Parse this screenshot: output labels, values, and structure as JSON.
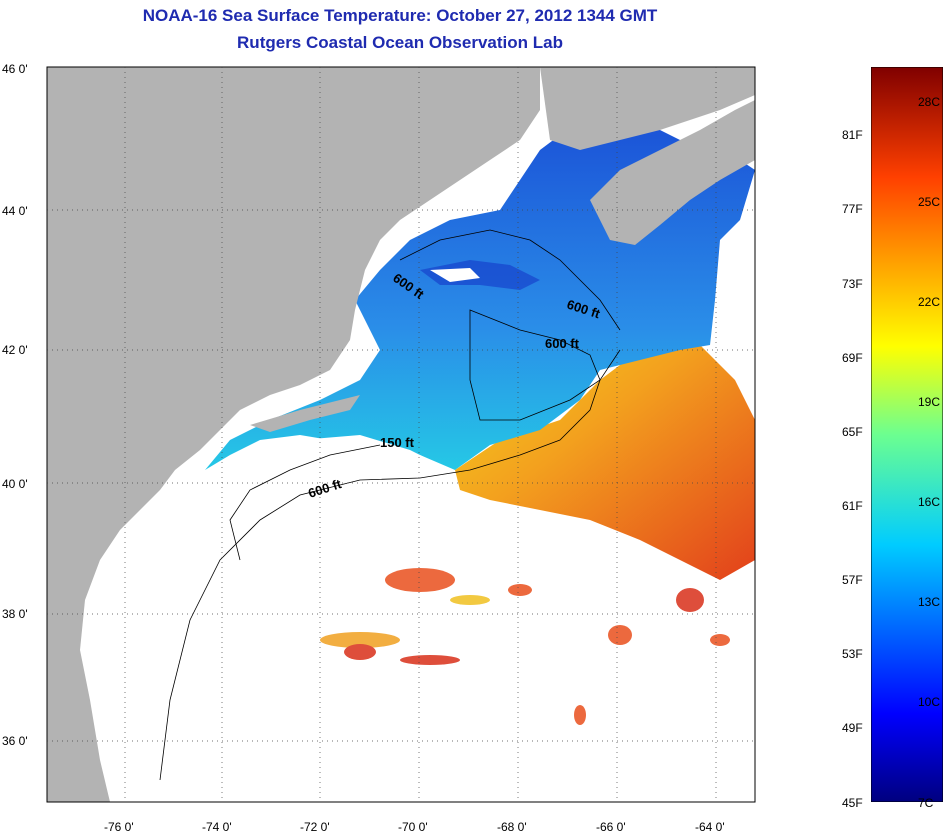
{
  "header": {
    "title": "NOAA-16 Sea Surface Temperature:  October 27, 2012 1344 GMT",
    "subtitle": "Rutgers Coastal Ocean Observation Lab"
  },
  "colors": {
    "title": "#1f2bb0",
    "land": "#b3b3b3",
    "cloud": "#ffffff",
    "warm": "#e8401a",
    "cool": "#1e64d8"
  },
  "map": {
    "lat_labels": [
      "46 0'",
      "44 0'",
      "42 0'",
      "40 0'",
      "38 0'",
      "36 0'"
    ],
    "lon_labels": [
      "-76 0'",
      "-74 0'",
      "-72 0'",
      "-70 0'",
      "-68 0'",
      "-66 0'",
      "-64 0'"
    ],
    "isobaths": [
      {
        "text": "600 ft"
      },
      {
        "text": "600 ft"
      },
      {
        "text": "600 ft"
      },
      {
        "text": "150 ft"
      },
      {
        "text": "600 ft"
      }
    ]
  },
  "colorbar": {
    "fahrenheit": [
      "81F",
      "77F",
      "73F",
      "69F",
      "65F",
      "61F",
      "57F",
      "53F",
      "49F",
      "45F"
    ],
    "celsius": [
      "28C",
      "25C",
      "22C",
      "19C",
      "16C",
      "13C",
      "10C",
      "7C"
    ]
  }
}
